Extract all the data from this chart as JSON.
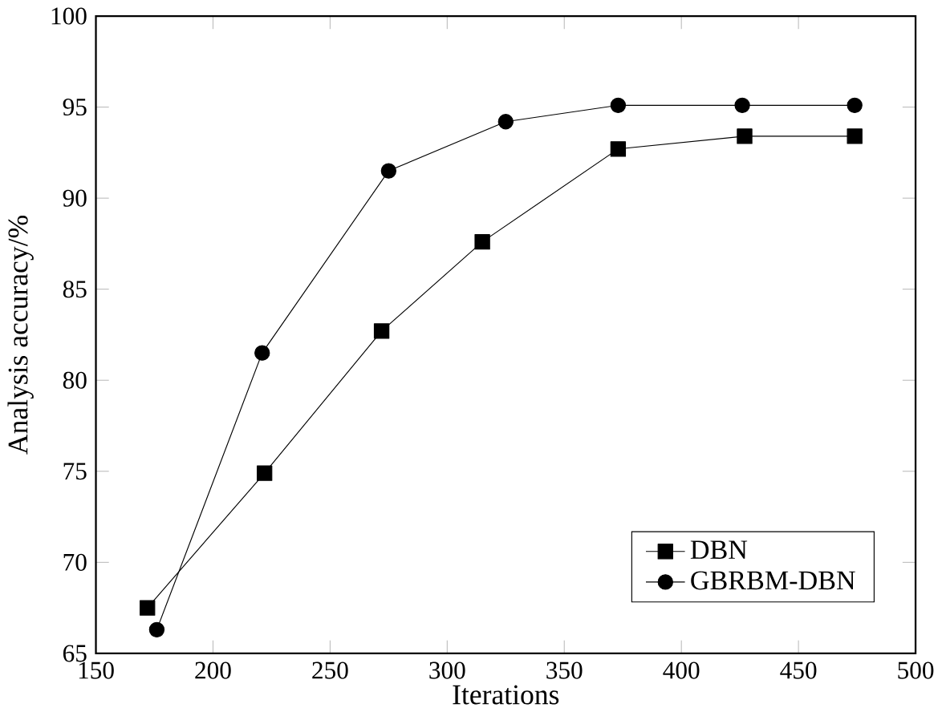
{
  "chart_data": {
    "type": "line",
    "xlabel": "Iterations",
    "ylabel": "Analysis accuracy/%",
    "xlim": [
      150,
      500
    ],
    "xticks": [
      150,
      200,
      250,
      300,
      350,
      400,
      450,
      500
    ],
    "ylim": [
      65,
      100
    ],
    "yticks": [
      65,
      70,
      75,
      80,
      85,
      90,
      95,
      100
    ],
    "grid": false,
    "legend": "bottom right",
    "series": [
      {
        "name": "DBN",
        "color": "#000000",
        "marker": "square",
        "x": [
          172,
          222,
          272,
          315,
          373,
          427,
          474
        ],
        "values": [
          67.5,
          74.9,
          82.7,
          87.6,
          92.7,
          93.4,
          93.4
        ]
      },
      {
        "name": "GBRBM-DBN",
        "color": "#000000",
        "marker": "circle",
        "x": [
          176,
          221,
          275,
          325,
          373,
          426,
          474
        ],
        "values": [
          66.3,
          81.5,
          91.5,
          94.2,
          95.1,
          95.1,
          95.1
        ]
      }
    ]
  }
}
